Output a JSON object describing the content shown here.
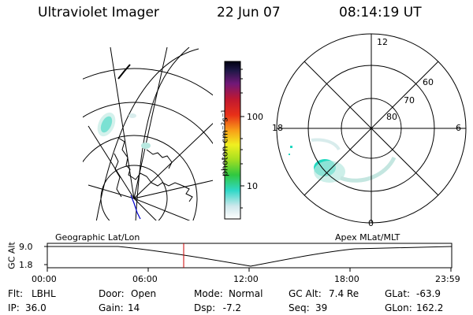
{
  "header": {
    "title": "Ultraviolet Imager",
    "date": "22 Jun 07",
    "time": "08:14:19 UT"
  },
  "colorbar": {
    "label": "photon cm⁻²s⁻¹",
    "tick_labels": [
      "100",
      "10"
    ],
    "scale": "log"
  },
  "polar_plot": {
    "mlt_labels": {
      "top": "12",
      "left": "18",
      "right": "6",
      "bottom": "0"
    },
    "lat_labels": [
      "60",
      "70",
      "80"
    ]
  },
  "timeline": {
    "left_title": "Geographic Lat/Lon",
    "right_title": "Apex MLat/MLT",
    "axis_label": "GC Alt",
    "y_ticks": [
      "9.0",
      "1.8"
    ],
    "x_ticks": [
      "00:00",
      "06:00",
      "12:00",
      "18:00",
      "23:59"
    ],
    "current_time_marker": "08:14"
  },
  "info": {
    "row1": [
      {
        "key": "Flt:",
        "val": "LBHL"
      },
      {
        "key": "Door:",
        "val": "Open"
      },
      {
        "key": "Mode:",
        "val": "Normal"
      },
      {
        "key": "GC Alt:",
        "val": "7.4 Re"
      },
      {
        "key": "GLat:",
        "val": "-63.9"
      }
    ],
    "row2": [
      {
        "key": "IP:",
        "val": "36.0"
      },
      {
        "key": "Gain:",
        "val": "14"
      },
      {
        "key": "Dsp:",
        "val": "  -7.2"
      },
      {
        "key": "Seq:",
        "val": "39"
      },
      {
        "key": "GLon:",
        "val": "162.2"
      }
    ]
  },
  "colors": {
    "marker": "#cc0000",
    "coast_blue": "#0000cc",
    "aurora_cyan": "#22d8c0",
    "aurora_light": "#b8e8e0"
  }
}
